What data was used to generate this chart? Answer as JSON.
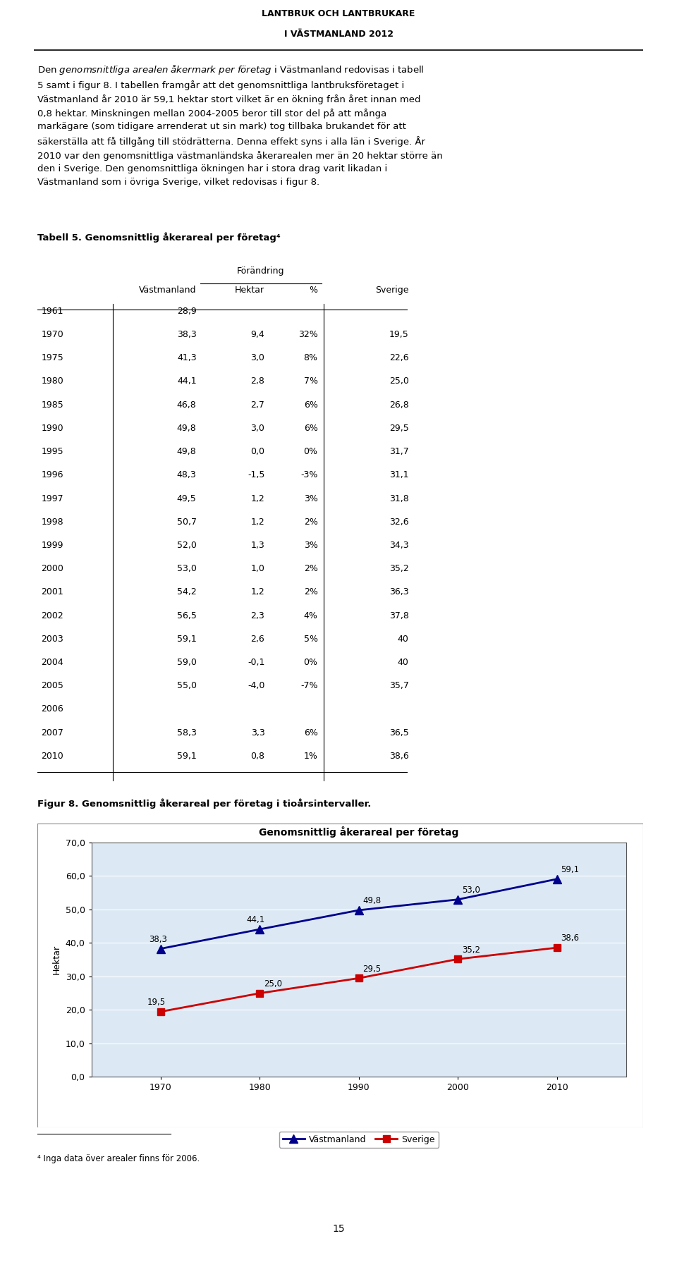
{
  "header_line1": "LANTBRUK OCH LANTBRUKARE",
  "header_line2": "I VÄSTMANLAND 2012",
  "body_text_italic": "genomsnittliga arealen åkermark per företag",
  "table_title": "Tabell 5. Genomsnittlig åkerareal per företag⁴",
  "table_data": [
    [
      "1961",
      "28,9",
      "",
      "",
      ""
    ],
    [
      "1970",
      "38,3",
      "9,4",
      "32%",
      "19,5"
    ],
    [
      "1975",
      "41,3",
      "3,0",
      "8%",
      "22,6"
    ],
    [
      "1980",
      "44,1",
      "2,8",
      "7%",
      "25,0"
    ],
    [
      "1985",
      "46,8",
      "2,7",
      "6%",
      "26,8"
    ],
    [
      "1990",
      "49,8",
      "3,0",
      "6%",
      "29,5"
    ],
    [
      "1995",
      "49,8",
      "0,0",
      "0%",
      "31,7"
    ],
    [
      "1996",
      "48,3",
      "-1,5",
      "-3%",
      "31,1"
    ],
    [
      "1997",
      "49,5",
      "1,2",
      "3%",
      "31,8"
    ],
    [
      "1998",
      "50,7",
      "1,2",
      "2%",
      "32,6"
    ],
    [
      "1999",
      "52,0",
      "1,3",
      "3%",
      "34,3"
    ],
    [
      "2000",
      "53,0",
      "1,0",
      "2%",
      "35,2"
    ],
    [
      "2001",
      "54,2",
      "1,2",
      "2%",
      "36,3"
    ],
    [
      "2002",
      "56,5",
      "2,3",
      "4%",
      "37,8"
    ],
    [
      "2003",
      "59,1",
      "2,6",
      "5%",
      "40"
    ],
    [
      "2004",
      "59,0",
      "-0,1",
      "0%",
      "40"
    ],
    [
      "2005",
      "55,0",
      "-4,0",
      "-7%",
      "35,7"
    ],
    [
      "2006",
      "",
      "",
      "",
      ""
    ],
    [
      "2007",
      "58,3",
      "3,3",
      "6%",
      "36,5"
    ],
    [
      "2010",
      "59,1",
      "0,8",
      "1%",
      "38,6"
    ]
  ],
  "fig_caption": "Figur 8. Genomsnittlig åkerareal per företag i tioårsintervaller.",
  "chart_title": "Genomsnittlig åkerareal per företag",
  "chart_ylabel": "Hektar",
  "chart_years": [
    1970,
    1980,
    1990,
    2000,
    2010
  ],
  "vastmanland_values": [
    38.3,
    44.1,
    49.8,
    53.0,
    59.1
  ],
  "sverige_values": [
    19.5,
    25.0,
    29.5,
    35.2,
    38.6
  ],
  "chart_ylim": [
    0,
    70
  ],
  "chart_yticks": [
    0,
    10,
    20,
    30,
    40,
    50,
    60,
    70
  ],
  "chart_ytick_labels": [
    "0,0",
    "10,0",
    "20,0",
    "30,0",
    "40,0",
    "50,0",
    "60,0",
    "70,0"
  ],
  "vastmanland_color": "#00008B",
  "sverige_color": "#CC0000",
  "chart_bg_color": "#BDD7EE",
  "chart_plot_bg": "#DCE9F5",
  "footnote": "⁴ Inga data över arealer finns för 2006.",
  "page_number": "15",
  "vastmanland_label": "Västmanland",
  "sverige_label": "Sverige"
}
